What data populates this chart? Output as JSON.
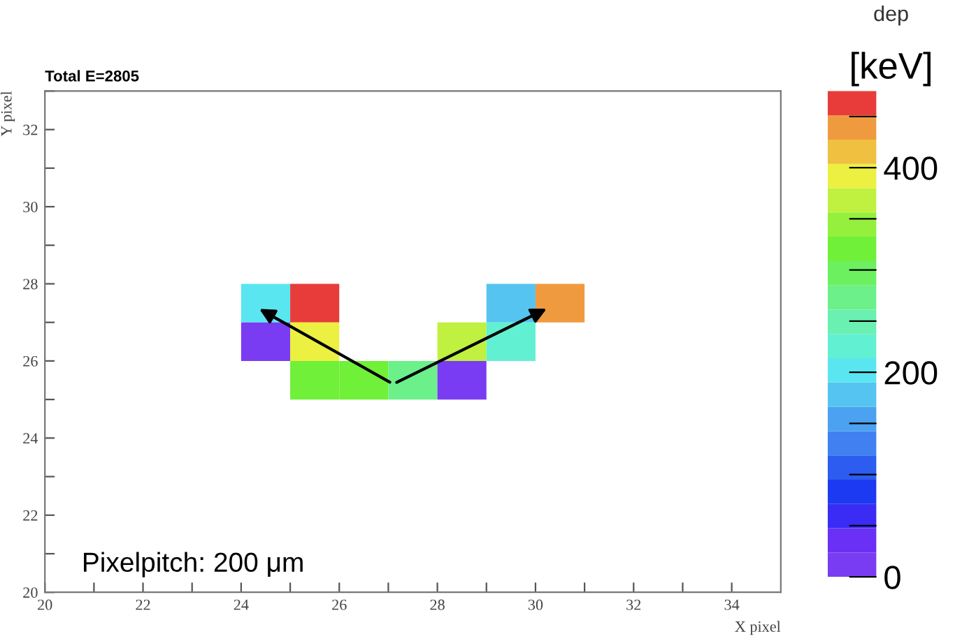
{
  "chart_data": {
    "type": "scatter",
    "title": "Total E=2805",
    "xlabel": "X pixel",
    "ylabel": "Y pixel",
    "clabel": "dep [keV]",
    "annotations": [
      "Pixelpitch: 200 μm"
    ],
    "marker": "square",
    "grid": false,
    "x": [
      24.5,
      25.5,
      29.5,
      30.5,
      24.5,
      25.5,
      28.5,
      29.5,
      25.5,
      26.5,
      27.5,
      28.5
    ],
    "values": [
      27.5,
      27.5,
      27.5,
      27.5,
      26.5,
      26.5,
      26.5,
      26.5,
      25.5,
      25.5,
      25.5,
      25.5
    ],
    "cvalues": [
      200,
      465,
      175,
      440,
      10,
      390,
      370,
      225,
      310,
      310,
      270,
      10
    ],
    "clim": [
      0,
      475
    ],
    "cticks": [
      0,
      {
        "value": 50,
        "label": null
      },
      {
        "value": 100,
        "label": null
      },
      {
        "value": 150,
        "label": null
      },
      200,
      {
        "value": 250,
        "label": null
      },
      {
        "value": 300,
        "label": null
      },
      {
        "value": 350,
        "label": null
      },
      400,
      {
        "value": 450,
        "label": null
      }
    ],
    "xlim": [
      20,
      35
    ],
    "ylim": [
      20,
      33
    ],
    "xticks": [
      20,
      {
        "value": 21,
        "label": null
      },
      22,
      {
        "value": 23,
        "label": null
      },
      24,
      {
        "value": 25,
        "label": null
      },
      26,
      {
        "value": 27,
        "label": null
      },
      28,
      {
        "value": 29,
        "label": null
      },
      30,
      {
        "value": 31,
        "label": null
      },
      32,
      {
        "value": 33,
        "label": null
      },
      34
    ],
    "yticks": [
      20,
      {
        "value": 21,
        "label": null
      },
      22,
      {
        "value": 23,
        "label": null
      },
      24,
      {
        "value": 25,
        "label": null
      },
      26,
      {
        "value": 27,
        "label": null
      },
      28,
      {
        "value": 29,
        "label": null
      },
      30,
      {
        "value": 31,
        "label": null
      },
      32,
      {
        "value": 33,
        "label": null
      }
    ]
  }
}
